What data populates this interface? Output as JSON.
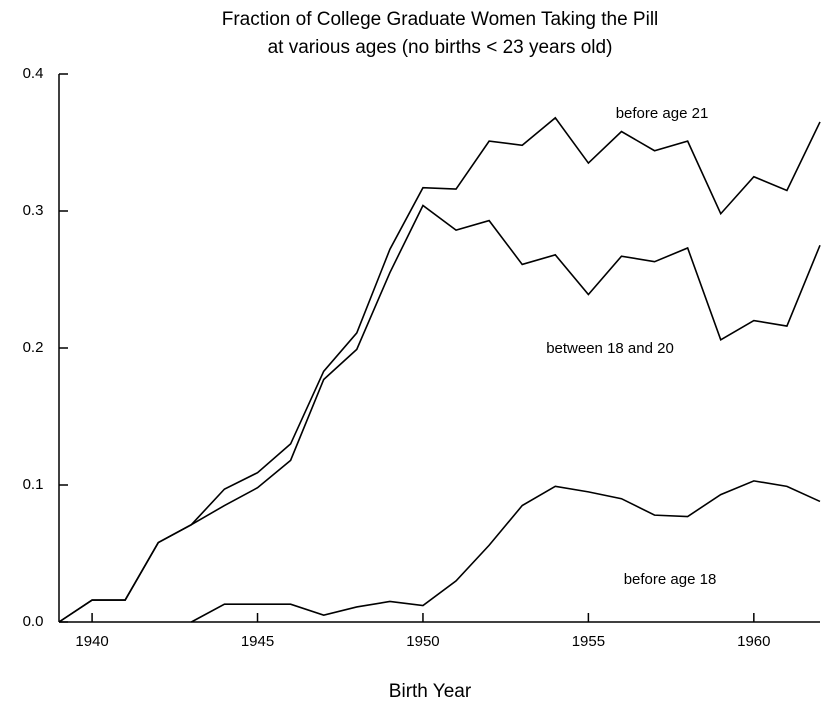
{
  "chart_data": {
    "type": "line",
    "title": "Fraction of College Graduate Women Taking the Pill",
    "subtitle": "at various ages (no births < 23 years old)",
    "x_label": "Birth Year",
    "x": [
      1939,
      1940,
      1941,
      1942,
      1943,
      1944,
      1945,
      1946,
      1947,
      1948,
      1949,
      1950,
      1951,
      1952,
      1953,
      1954,
      1955,
      1956,
      1957,
      1958,
      1959,
      1960,
      1961,
      1962
    ],
    "series": [
      {
        "name": "before age 21",
        "color": "#000000",
        "values": [
          0,
          0.016,
          0.016,
          0.058,
          0.071,
          0.097,
          0.109,
          0.13,
          0.183,
          0.211,
          0.272,
          0.317,
          0.316,
          0.351,
          0.348,
          0.368,
          0.335,
          0.358,
          0.344,
          0.351,
          0.298,
          0.325,
          0.315,
          0.365
        ]
      },
      {
        "name": "between 18 and 20",
        "color": "#000000",
        "values": [
          0,
          0.016,
          0.016,
          0.058,
          0.071,
          0.085,
          0.098,
          0.118,
          0.177,
          0.199,
          0.255,
          0.304,
          0.286,
          0.293,
          0.261,
          0.268,
          0.239,
          0.267,
          0.263,
          0.273,
          0.206,
          0.22,
          0.216,
          0.275
        ]
      },
      {
        "name": "before age 18",
        "color": "#000000",
        "values": [
          null,
          null,
          null,
          null,
          0,
          0.013,
          0.013,
          0.013,
          0.005,
          0.011,
          0.015,
          0.012,
          0.03,
          0.056,
          0.085,
          0.099,
          0.095,
          0.09,
          0.078,
          0.077,
          0.093,
          0.103,
          0.099,
          0.088
        ]
      }
    ],
    "xlim": [
      1939,
      1962
    ],
    "xticks": [
      1940,
      1945,
      1950,
      1955,
      1960
    ],
    "ylim": [
      0,
      0.4
    ],
    "yticks": [
      {
        "value": 0,
        "label": "0.0"
      },
      0.1,
      0.2,
      0.3,
      0.4
    ],
    "grid": false
  }
}
